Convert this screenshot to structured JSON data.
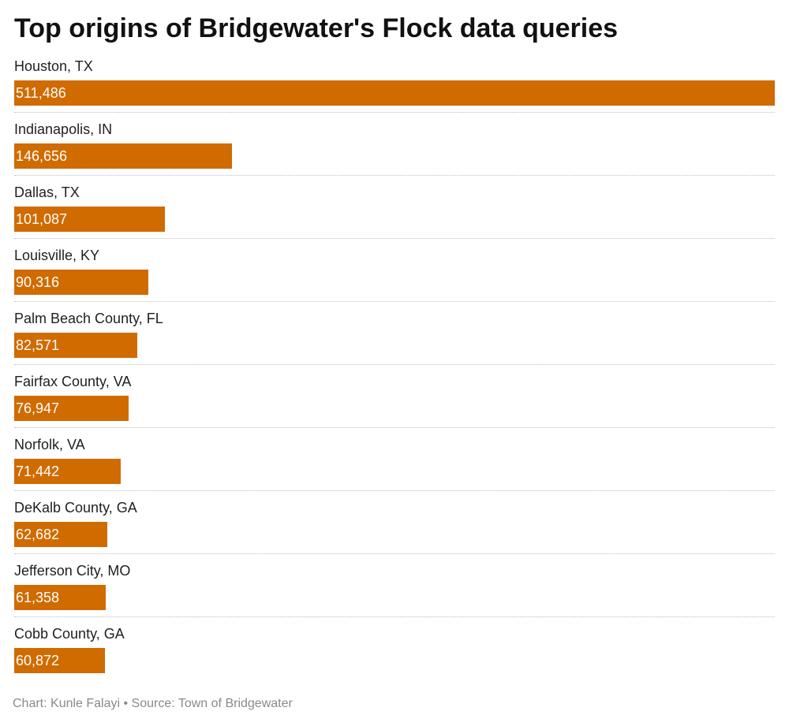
{
  "chart_data": {
    "type": "bar",
    "orientation": "horizontal",
    "title": "Top origins of Bridgewater's Flock data queries",
    "xlabel": "",
    "ylabel": "",
    "grid": false,
    "categories": [
      "Houston, TX",
      "Indianapolis, IN",
      "Dallas, TX",
      "Louisville, KY",
      "Palm Beach County, FL",
      "Fairfax County, VA",
      "Norfolk, VA",
      "DeKalb County, GA",
      "Jefferson City, MO",
      "Cobb County, GA"
    ],
    "values": [
      511486,
      146656,
      101087,
      90316,
      82571,
      76947,
      71442,
      62682,
      61358,
      60872
    ],
    "value_labels": [
      "511,486",
      "146,656",
      "101,087",
      "90,316",
      "82,571",
      "76,947",
      "71,442",
      "62,682",
      "61,358",
      "60,872"
    ],
    "xlim": [
      0,
      511486
    ],
    "bar_color": "#d06b00"
  },
  "footer": {
    "text": "Chart: Kunle Falayi • Source: Town of Bridgewater"
  }
}
